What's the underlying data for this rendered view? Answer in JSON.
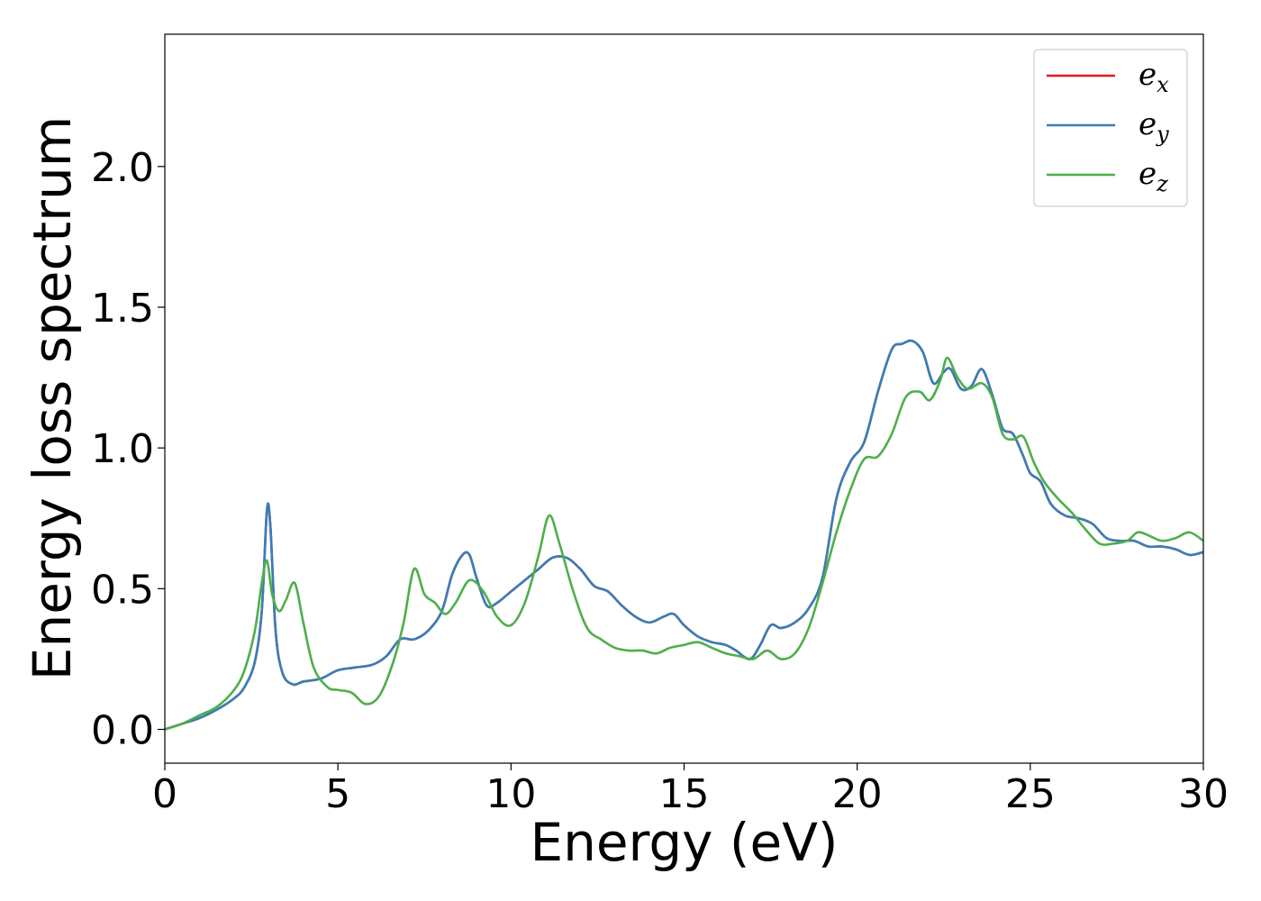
{
  "chart_data": {
    "type": "line",
    "title": "",
    "xlabel": "Energy (eV)",
    "ylabel": "Energy loss spectrum",
    "xlim": [
      0,
      30
    ],
    "ylim": [
      -0.12,
      2.47
    ],
    "xticks": [
      0,
      5,
      10,
      15,
      20,
      25,
      30
    ],
    "xtick_labels": [
      "0",
      "5",
      "10",
      "15",
      "20",
      "25",
      "30"
    ],
    "yticks": [
      0.0,
      0.5,
      1.0,
      1.5,
      2.0
    ],
    "ytick_labels": [
      "0.0",
      "0.5",
      "1.0",
      "1.5",
      "2.0"
    ],
    "grid": false,
    "legend_position": "top-right",
    "series": [
      {
        "name": "e",
        "subscript": "x",
        "color": "#e41a1c",
        "x": [
          0,
          0.5,
          1.0,
          1.5,
          2.0,
          2.3,
          2.6,
          2.8,
          2.95,
          3.05,
          3.2,
          3.4,
          3.7,
          4.0,
          4.5,
          5.0,
          5.5,
          6.0,
          6.4,
          6.8,
          7.2,
          7.6,
          8.0,
          8.3,
          8.6,
          8.8,
          9.0,
          9.3,
          9.6,
          10.0,
          10.4,
          10.8,
          11.2,
          11.6,
          12.0,
          12.4,
          12.8,
          13.2,
          13.6,
          14.0,
          14.4,
          14.7,
          15.0,
          15.4,
          15.8,
          16.2,
          16.5,
          16.9,
          17.2,
          17.5,
          17.8,
          18.2,
          18.6,
          19.0,
          19.4,
          19.8,
          20.2,
          20.6,
          21.0,
          21.3,
          21.6,
          21.9,
          22.2,
          22.5,
          22.7,
          23.0,
          23.3,
          23.6,
          23.9,
          24.2,
          24.5,
          24.8,
          25.0,
          25.3,
          25.6,
          26.0,
          26.4,
          26.8,
          27.2,
          27.6,
          28.0,
          28.4,
          28.8,
          29.2,
          29.6,
          30.0
        ],
        "y": [
          0.0,
          0.02,
          0.04,
          0.07,
          0.11,
          0.15,
          0.24,
          0.42,
          0.78,
          0.72,
          0.35,
          0.2,
          0.16,
          0.17,
          0.18,
          0.21,
          0.22,
          0.23,
          0.26,
          0.32,
          0.32,
          0.35,
          0.42,
          0.55,
          0.62,
          0.62,
          0.54,
          0.44,
          0.45,
          0.49,
          0.53,
          0.57,
          0.61,
          0.61,
          0.57,
          0.51,
          0.49,
          0.44,
          0.4,
          0.38,
          0.4,
          0.41,
          0.37,
          0.33,
          0.31,
          0.3,
          0.28,
          0.25,
          0.3,
          0.37,
          0.36,
          0.38,
          0.43,
          0.54,
          0.82,
          0.95,
          1.02,
          1.2,
          1.35,
          1.37,
          1.38,
          1.34,
          1.23,
          1.27,
          1.28,
          1.21,
          1.22,
          1.28,
          1.19,
          1.07,
          1.05,
          0.97,
          0.91,
          0.88,
          0.8,
          0.76,
          0.75,
          0.73,
          0.68,
          0.67,
          0.67,
          0.65,
          0.65,
          0.64,
          0.62,
          0.63
        ]
      },
      {
        "name": "e",
        "subscript": "y",
        "color": "#377eb8",
        "x": [
          0,
          0.5,
          1.0,
          1.5,
          2.0,
          2.3,
          2.6,
          2.8,
          2.95,
          3.05,
          3.2,
          3.4,
          3.7,
          4.0,
          4.5,
          5.0,
          5.5,
          6.0,
          6.4,
          6.8,
          7.2,
          7.6,
          8.0,
          8.3,
          8.6,
          8.8,
          9.0,
          9.3,
          9.6,
          10.0,
          10.4,
          10.8,
          11.2,
          11.6,
          12.0,
          12.4,
          12.8,
          13.2,
          13.6,
          14.0,
          14.4,
          14.7,
          15.0,
          15.4,
          15.8,
          16.2,
          16.5,
          16.9,
          17.2,
          17.5,
          17.8,
          18.2,
          18.6,
          19.0,
          19.4,
          19.8,
          20.2,
          20.6,
          21.0,
          21.3,
          21.6,
          21.9,
          22.2,
          22.5,
          22.7,
          23.0,
          23.3,
          23.6,
          23.9,
          24.2,
          24.5,
          24.8,
          25.0,
          25.3,
          25.6,
          26.0,
          26.4,
          26.8,
          27.2,
          27.6,
          28.0,
          28.4,
          28.8,
          29.2,
          29.6,
          30.0
        ],
        "y": [
          0.0,
          0.02,
          0.04,
          0.07,
          0.11,
          0.15,
          0.24,
          0.42,
          0.78,
          0.72,
          0.35,
          0.2,
          0.16,
          0.17,
          0.18,
          0.21,
          0.22,
          0.23,
          0.26,
          0.32,
          0.32,
          0.35,
          0.42,
          0.55,
          0.62,
          0.62,
          0.54,
          0.44,
          0.45,
          0.49,
          0.53,
          0.57,
          0.61,
          0.61,
          0.57,
          0.51,
          0.49,
          0.44,
          0.4,
          0.38,
          0.4,
          0.41,
          0.37,
          0.33,
          0.31,
          0.3,
          0.28,
          0.25,
          0.3,
          0.37,
          0.36,
          0.38,
          0.43,
          0.54,
          0.82,
          0.95,
          1.02,
          1.2,
          1.35,
          1.37,
          1.38,
          1.34,
          1.23,
          1.27,
          1.28,
          1.21,
          1.22,
          1.28,
          1.19,
          1.07,
          1.05,
          0.97,
          0.91,
          0.88,
          0.8,
          0.76,
          0.75,
          0.73,
          0.68,
          0.67,
          0.67,
          0.65,
          0.65,
          0.64,
          0.62,
          0.63
        ]
      },
      {
        "name": "e",
        "subscript": "z",
        "color": "#4daf4a",
        "x": [
          0,
          0.5,
          1.0,
          1.5,
          2.0,
          2.3,
          2.6,
          2.8,
          2.95,
          3.1,
          3.3,
          3.5,
          3.75,
          4.0,
          4.3,
          4.7,
          5.0,
          5.4,
          5.8,
          6.2,
          6.6,
          6.9,
          7.2,
          7.5,
          7.8,
          8.1,
          8.4,
          8.8,
          9.2,
          9.6,
          10.0,
          10.4,
          10.8,
          11.1,
          11.4,
          11.8,
          12.2,
          12.6,
          13.0,
          13.4,
          13.8,
          14.2,
          14.6,
          15.0,
          15.4,
          15.8,
          16.2,
          16.6,
          17.0,
          17.4,
          17.8,
          18.2,
          18.6,
          19.0,
          19.4,
          19.8,
          20.2,
          20.6,
          21.0,
          21.4,
          21.8,
          22.1,
          22.4,
          22.6,
          22.9,
          23.2,
          23.6,
          23.9,
          24.2,
          24.5,
          24.8,
          25.1,
          25.4,
          25.8,
          26.2,
          26.6,
          27.0,
          27.4,
          27.8,
          28.1,
          28.4,
          28.8,
          29.2,
          29.6,
          30.0
        ],
        "y": [
          0.0,
          0.02,
          0.05,
          0.08,
          0.14,
          0.21,
          0.35,
          0.52,
          0.6,
          0.48,
          0.42,
          0.46,
          0.52,
          0.38,
          0.22,
          0.15,
          0.14,
          0.13,
          0.09,
          0.12,
          0.24,
          0.38,
          0.57,
          0.48,
          0.45,
          0.41,
          0.45,
          0.53,
          0.49,
          0.4,
          0.37,
          0.45,
          0.62,
          0.76,
          0.66,
          0.49,
          0.36,
          0.32,
          0.29,
          0.28,
          0.28,
          0.27,
          0.29,
          0.3,
          0.31,
          0.29,
          0.27,
          0.26,
          0.25,
          0.28,
          0.25,
          0.27,
          0.36,
          0.52,
          0.7,
          0.85,
          0.96,
          0.97,
          1.05,
          1.18,
          1.2,
          1.17,
          1.24,
          1.32,
          1.25,
          1.21,
          1.23,
          1.18,
          1.05,
          1.03,
          1.04,
          0.95,
          0.88,
          0.82,
          0.77,
          0.71,
          0.66,
          0.66,
          0.67,
          0.7,
          0.69,
          0.67,
          0.68,
          0.7,
          0.67
        ]
      }
    ]
  }
}
